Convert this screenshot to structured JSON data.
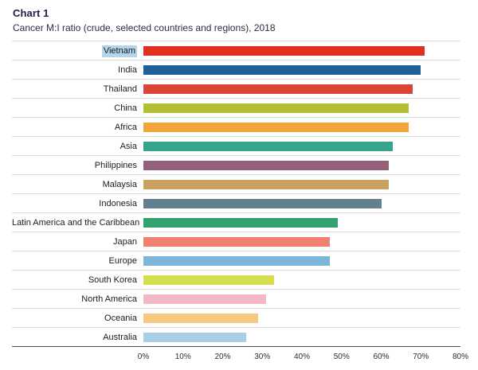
{
  "header": {
    "title": "Chart 1",
    "subtitle": "Cancer M:I ratio (crude, selected countries and regions), 2018"
  },
  "chart_data": {
    "type": "bar",
    "orientation": "horizontal",
    "title": "Chart 1",
    "subtitle": "Cancer M:I ratio (crude, selected countries and regions), 2018",
    "xlabel": "",
    "ylabel": "",
    "xlim": [
      0,
      80
    ],
    "x_ticks": [
      "0%",
      "10%",
      "20%",
      "30%",
      "40%",
      "50%",
      "60%",
      "70%",
      "80%"
    ],
    "grid": false,
    "legend": "none",
    "highlight_color": "#b5d5ea",
    "rows": [
      {
        "label": "Vietnam",
        "value": 71,
        "color": "#e0301e",
        "label_highlighted": true
      },
      {
        "label": "India",
        "value": 70,
        "color": "#215f9a",
        "label_highlighted": false
      },
      {
        "label": "Thailand",
        "value": 68,
        "color": "#dc4437",
        "label_highlighted": false
      },
      {
        "label": "China",
        "value": 67,
        "color": "#b3bf35",
        "label_highlighted": false
      },
      {
        "label": "Africa",
        "value": 67,
        "color": "#f2a33a",
        "label_highlighted": false
      },
      {
        "label": "Asia",
        "value": 63,
        "color": "#33a38a",
        "label_highlighted": false
      },
      {
        "label": "Philippines",
        "value": 62,
        "color": "#96607d",
        "label_highlighted": false
      },
      {
        "label": "Malaysia",
        "value": 62,
        "color": "#c9a35e",
        "label_highlighted": false
      },
      {
        "label": "Indonesia",
        "value": 60,
        "color": "#64808e",
        "label_highlighted": false
      },
      {
        "label": "Latin America and the Caribbean",
        "value": 49,
        "color": "#33a06f",
        "label_highlighted": false
      },
      {
        "label": "Japan",
        "value": 47,
        "color": "#ef8070",
        "label_highlighted": false
      },
      {
        "label": "Europe",
        "value": 47,
        "color": "#7eb6d9",
        "label_highlighted": false
      },
      {
        "label": "South Korea",
        "value": 33,
        "color": "#d3dd4e",
        "label_highlighted": false
      },
      {
        "label": "North America",
        "value": 31,
        "color": "#f2b8c6",
        "label_highlighted": false
      },
      {
        "label": "Oceania",
        "value": 29,
        "color": "#f7c97e",
        "label_highlighted": false
      },
      {
        "label": "Australia",
        "value": 26,
        "color": "#a9cfe5",
        "label_highlighted": false
      }
    ]
  }
}
